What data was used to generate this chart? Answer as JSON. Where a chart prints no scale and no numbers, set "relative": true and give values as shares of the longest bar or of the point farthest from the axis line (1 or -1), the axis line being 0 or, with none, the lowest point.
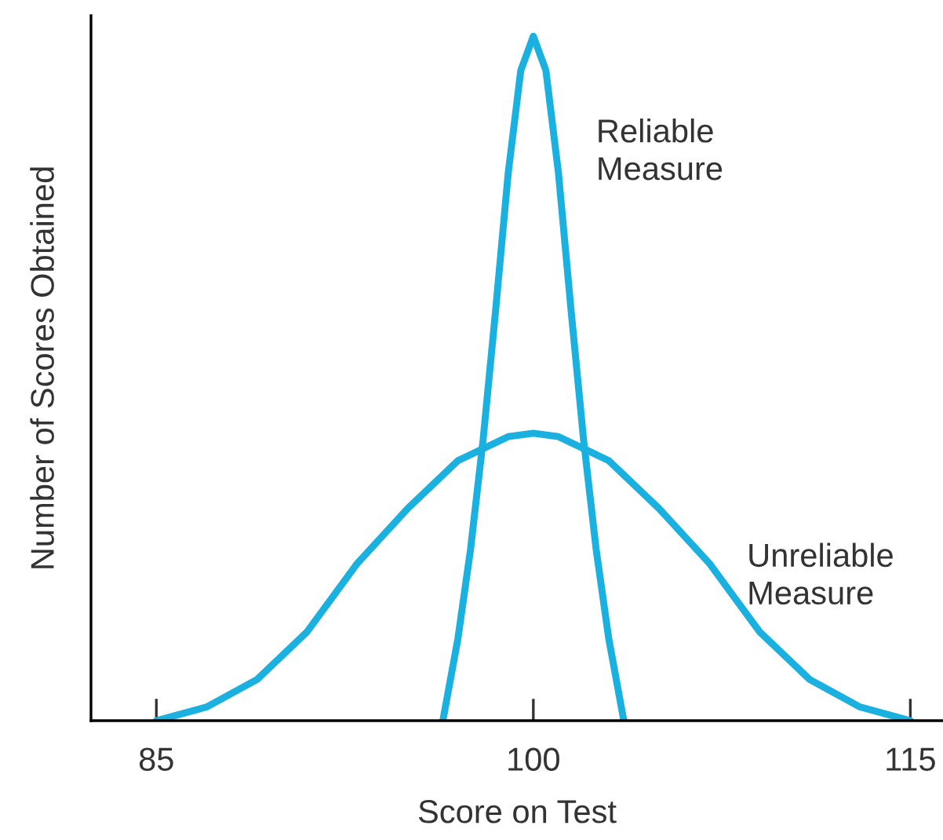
{
  "chart_data": {
    "type": "line",
    "relative": true,
    "xlabel": "Score on Test",
    "ylabel": "Number of Scores Obtained",
    "xlim": [
      82.4,
      116.3
    ],
    "xticks": [
      85,
      100,
      115
    ],
    "grid": false,
    "legend": false,
    "marker": "none",
    "line_style": "solid",
    "series": [
      {
        "name": "Reliable\nMeasure",
        "color": "#1ab0e0",
        "x": [
          96.4,
          97,
          97.5,
          98,
          98.5,
          99,
          99.5,
          100,
          100.5,
          101,
          101.5,
          102,
          102.5,
          103,
          103.6
        ],
        "values": [
          0,
          0.12,
          0.25,
          0.41,
          0.6,
          0.8,
          0.95,
          1,
          0.95,
          0.8,
          0.6,
          0.41,
          0.25,
          0.12,
          0
        ]
      },
      {
        "name": "Unreliable\nMeasure",
        "color": "#1ab0e0",
        "x": [
          85,
          87,
          89,
          91,
          93,
          95,
          97,
          99,
          100,
          101,
          103,
          105,
          107,
          109,
          111,
          113,
          115
        ],
        "values": [
          0,
          0.02,
          0.06,
          0.13,
          0.23,
          0.31,
          0.38,
          0.415,
          0.42,
          0.415,
          0.38,
          0.31,
          0.23,
          0.13,
          0.06,
          0.02,
          0
        ]
      }
    ]
  }
}
